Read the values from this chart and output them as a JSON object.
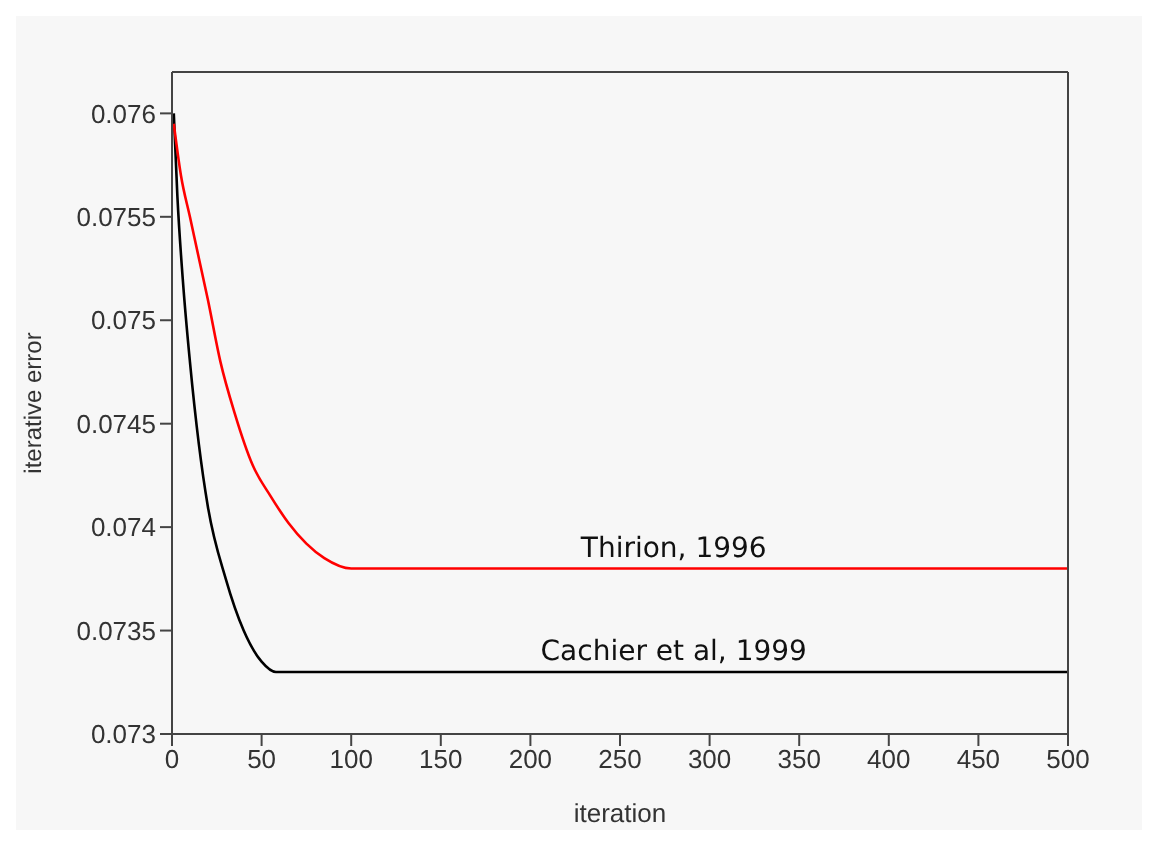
{
  "chart_data": {
    "type": "line",
    "xlabel": "iteration",
    "ylabel": "iterative error",
    "series": [
      {
        "name": "Thirion, 1996",
        "color": "#ff0000",
        "x": [
          1,
          5,
          10,
          15,
          20,
          27,
          35,
          45,
          55,
          65,
          75,
          85,
          100,
          500
        ],
        "values": [
          0.07595,
          0.0757,
          0.0755,
          0.0753,
          0.0751,
          0.0748,
          0.07455,
          0.0743,
          0.07415,
          0.07402,
          0.07392,
          0.07385,
          0.0738,
          0.0738
        ]
      },
      {
        "name": "Cachier et al, 1999",
        "color": "#000000",
        "x": [
          1,
          3,
          6,
          10,
          15,
          20,
          30,
          40,
          50,
          58,
          500
        ],
        "values": [
          0.076,
          0.0756,
          0.0752,
          0.0748,
          0.0744,
          0.0741,
          0.07375,
          0.0735,
          0.07335,
          0.0733,
          0.0733
        ]
      }
    ],
    "xlim": [
      0,
      500
    ],
    "xticks": [
      0,
      50,
      100,
      150,
      200,
      250,
      300,
      350,
      400,
      450,
      500
    ],
    "ylim": [
      0.073,
      0.0762
    ],
    "yticks": [
      0.073,
      0.0735,
      0.074,
      0.0745,
      0.075,
      0.0755,
      0.076
    ],
    "grid": false,
    "legend": false,
    "marker": "none",
    "line_style": "solid"
  }
}
